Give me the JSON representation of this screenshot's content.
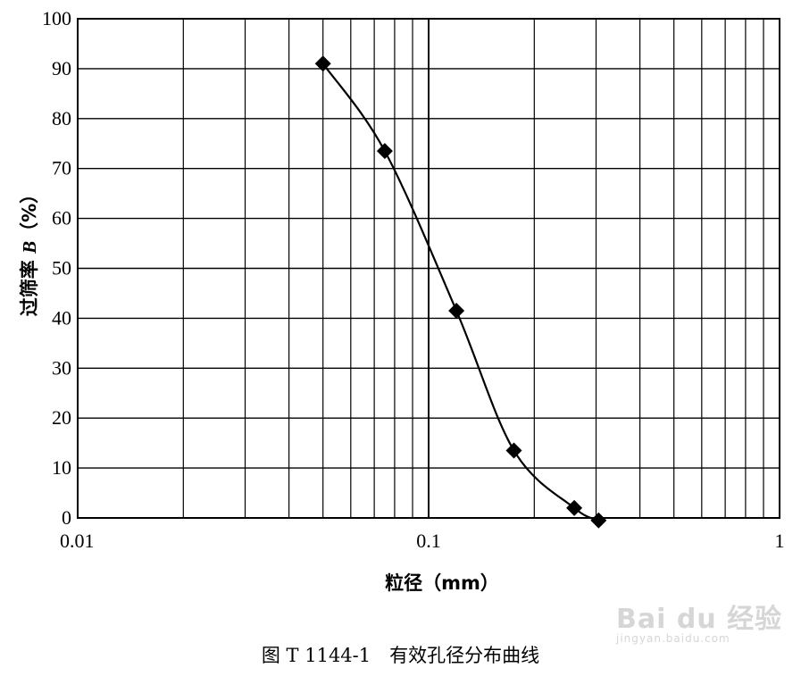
{
  "chart_data": {
    "type": "line",
    "title": "",
    "xlabel": "粒径（mm）",
    "ylabel_prefix": "过筛率 ",
    "ylabel_var": "B",
    "ylabel_suffix": "（%）",
    "x_scale": "log",
    "xlim": [
      0.01,
      1
    ],
    "ylim": [
      0,
      100
    ],
    "x_ticks": [
      0.01,
      0.1,
      1
    ],
    "x_tick_labels": [
      "0.01",
      "0.1",
      "1"
    ],
    "y_ticks": [
      0,
      10,
      20,
      30,
      40,
      50,
      60,
      70,
      80,
      90,
      100
    ],
    "y_tick_labels": [
      "0",
      "10",
      "20",
      "30",
      "40",
      "50",
      "60",
      "70",
      "80",
      "90",
      "100"
    ],
    "grid": true,
    "legend": "none",
    "marker": "diamond",
    "series": [
      {
        "x": [
          0.05,
          0.075,
          0.12,
          0.175,
          0.26,
          0.305
        ],
        "y": [
          91,
          73.5,
          41.5,
          13.5,
          2,
          -0.5
        ]
      }
    ]
  },
  "caption": "图 T 1144-1　有效孔径分布曲线",
  "watermark": {
    "main": "Bai du 经验",
    "sub": "jingyan.baidu.com"
  }
}
